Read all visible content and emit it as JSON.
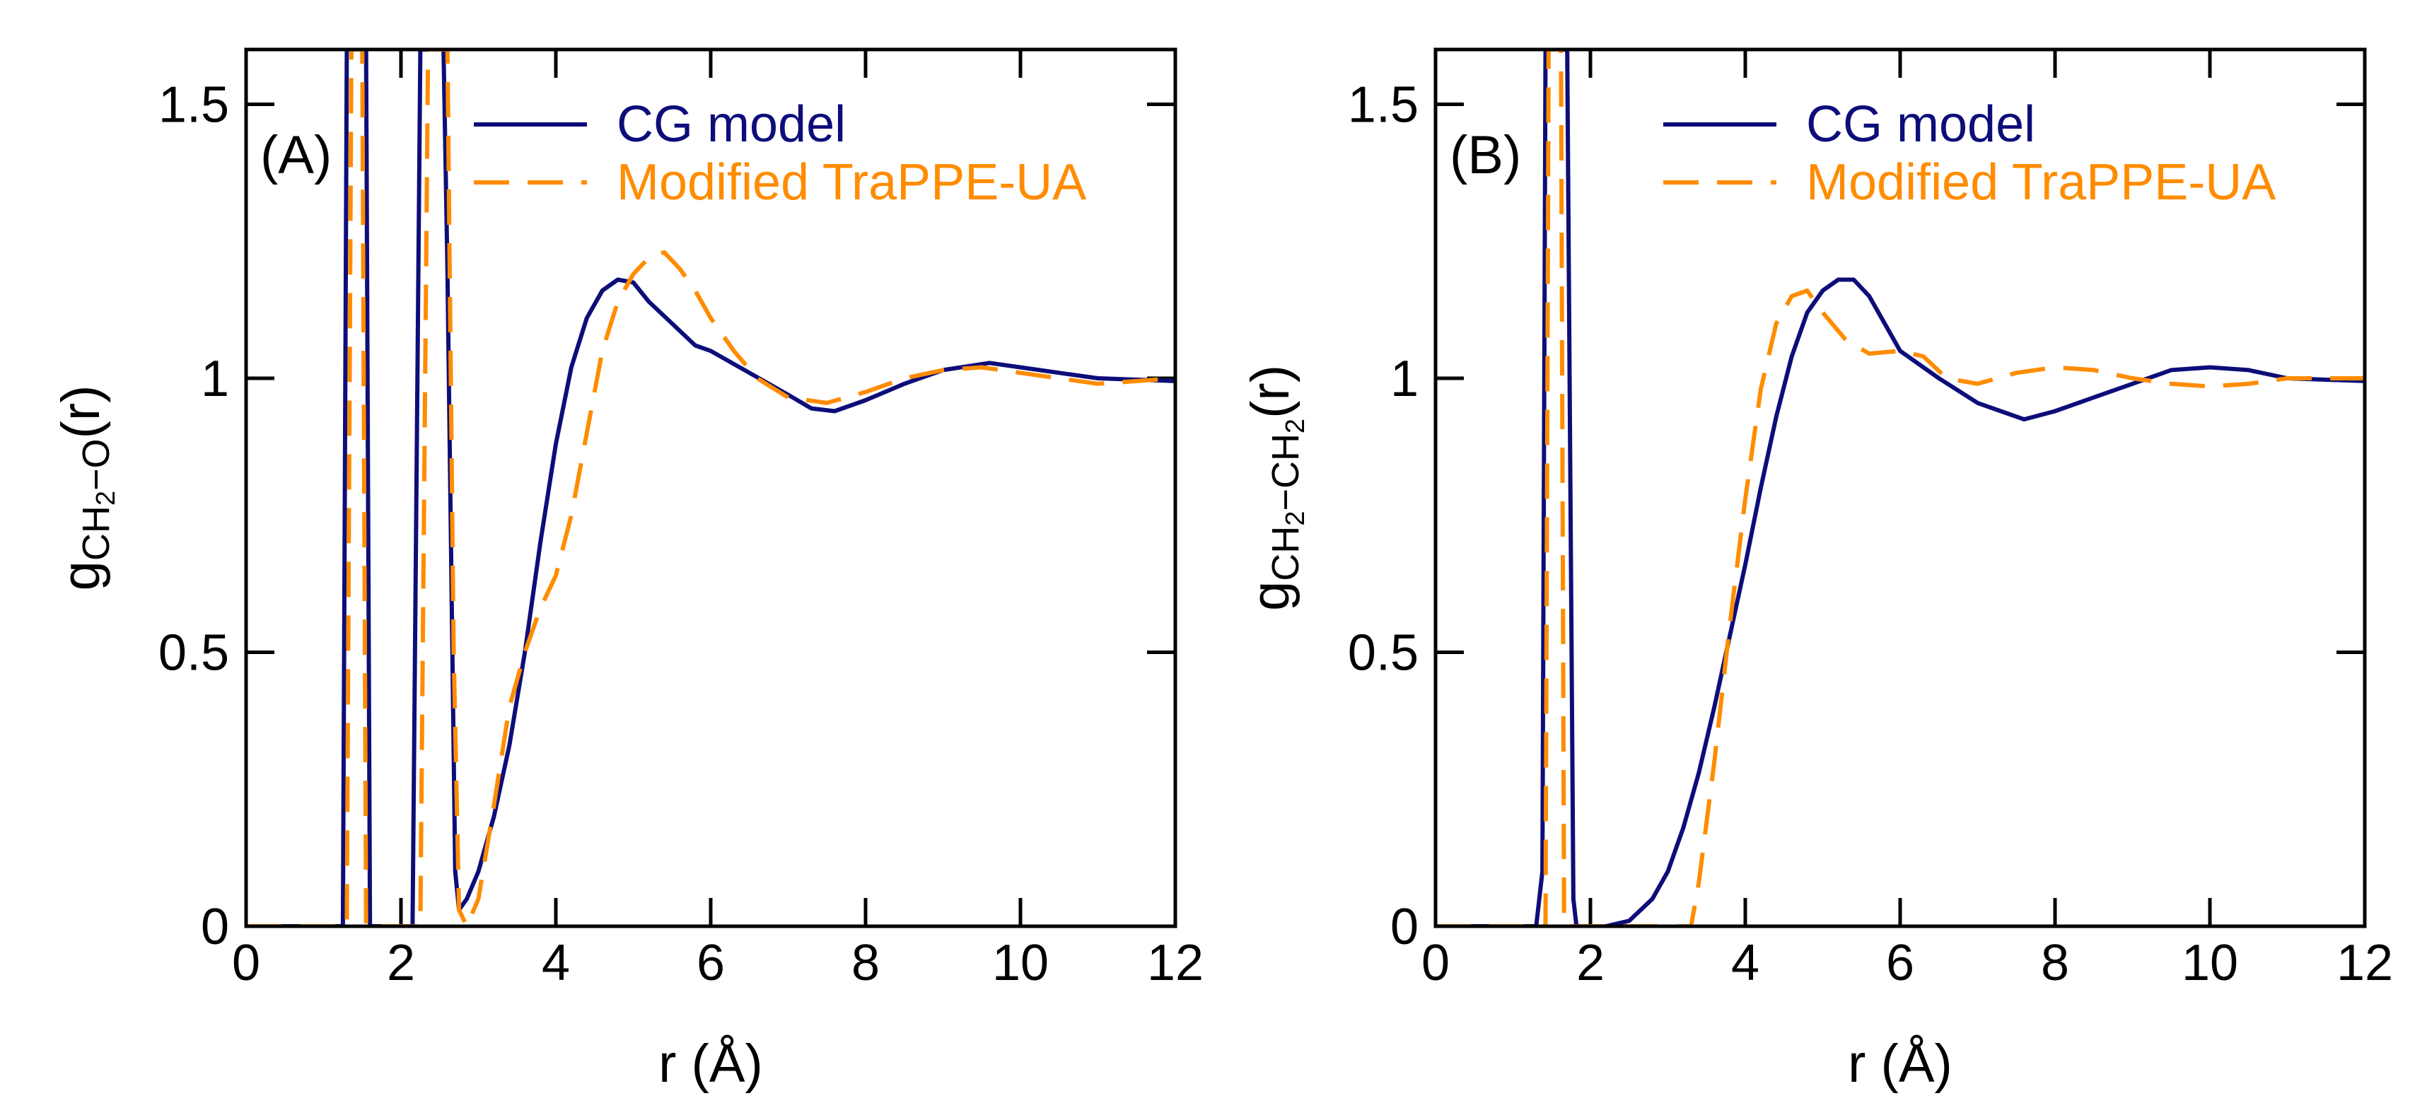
{
  "figure": {
    "title": ""
  },
  "chart_data": [
    {
      "panel_label": "(A)",
      "type": "line",
      "xlabel": "r (Å)",
      "ylabel": {
        "main": "g",
        "sub_a": "CH",
        "sub_b": "2",
        "sub_c": "−O",
        "arg": "(r)"
      },
      "xlim": [
        0,
        12
      ],
      "ylim": [
        0,
        1.6
      ],
      "xticks": [
        0,
        2,
        4,
        6,
        8,
        10,
        12
      ],
      "yticks": [
        0,
        0.5,
        1,
        1.5
      ],
      "xtick_labels": [
        "0",
        "2",
        "4",
        "6",
        "8",
        "10",
        "12"
      ],
      "ytick_labels": [
        "0",
        "0.5",
        "1",
        "1.5"
      ],
      "legend_position": "top-right",
      "series": [
        {
          "name": "CG model",
          "color": "#0d0d7a",
          "style": "solid",
          "points": [
            [
              0,
              0
            ],
            [
              1.25,
              0
            ],
            [
              1.3,
              1.6
            ],
            [
              1.45,
              1.6
            ],
            [
              1.55,
              1.6
            ],
            [
              1.6,
              0
            ],
            [
              2.15,
              0
            ],
            [
              2.25,
              1.6
            ],
            [
              2.45,
              1.6
            ],
            [
              2.55,
              1.6
            ],
            [
              2.6,
              1.2
            ],
            [
              2.7,
              0.1
            ],
            [
              2.75,
              0.03
            ],
            [
              2.85,
              0.05
            ],
            [
              3.0,
              0.1
            ],
            [
              3.2,
              0.2
            ],
            [
              3.4,
              0.33
            ],
            [
              3.6,
              0.5
            ],
            [
              3.8,
              0.7
            ],
            [
              4.0,
              0.88
            ],
            [
              4.2,
              1.02
            ],
            [
              4.4,
              1.11
            ],
            [
              4.6,
              1.16
            ],
            [
              4.8,
              1.18
            ],
            [
              5.0,
              1.175
            ],
            [
              5.2,
              1.14
            ],
            [
              5.5,
              1.1
            ],
            [
              5.8,
              1.06
            ],
            [
              6.0,
              1.05
            ],
            [
              6.5,
              1.01
            ],
            [
              7.0,
              0.97
            ],
            [
              7.3,
              0.945
            ],
            [
              7.6,
              0.94
            ],
            [
              8.0,
              0.96
            ],
            [
              8.5,
              0.99
            ],
            [
              9.0,
              1.015
            ],
            [
              9.6,
              1.028
            ],
            [
              10.0,
              1.02
            ],
            [
              10.5,
              1.01
            ],
            [
              11.0,
              1.0
            ],
            [
              12.0,
              0.995
            ]
          ]
        },
        {
          "name": "Modified TraPPE-UA",
          "color": "#ff8c00",
          "style": "dashed",
          "points": [
            [
              0,
              0
            ],
            [
              1.3,
              0
            ],
            [
              1.36,
              1.6
            ],
            [
              1.5,
              1.6
            ],
            [
              1.55,
              0
            ],
            [
              2.25,
              0
            ],
            [
              2.35,
              1.6
            ],
            [
              2.6,
              1.6
            ],
            [
              2.68,
              0.5
            ],
            [
              2.75,
              0.03
            ],
            [
              2.85,
              0.0
            ],
            [
              3.0,
              0.05
            ],
            [
              3.2,
              0.22
            ],
            [
              3.4,
              0.4
            ],
            [
              3.6,
              0.5
            ],
            [
              3.8,
              0.58
            ],
            [
              4.0,
              0.64
            ],
            [
              4.2,
              0.75
            ],
            [
              4.4,
              0.9
            ],
            [
              4.6,
              1.05
            ],
            [
              4.8,
              1.14
            ],
            [
              5.0,
              1.19
            ],
            [
              5.2,
              1.22
            ],
            [
              5.4,
              1.23
            ],
            [
              5.6,
              1.2
            ],
            [
              5.8,
              1.16
            ],
            [
              6.0,
              1.11
            ],
            [
              6.3,
              1.05
            ],
            [
              6.6,
              1.0
            ],
            [
              7.0,
              0.965
            ],
            [
              7.5,
              0.955
            ],
            [
              8.0,
              0.975
            ],
            [
              8.5,
              1.0
            ],
            [
              9.0,
              1.015
            ],
            [
              9.5,
              1.02
            ],
            [
              10.0,
              1.01
            ],
            [
              10.5,
              1.0
            ],
            [
              11.0,
              0.99
            ],
            [
              12.0,
              1.0
            ]
          ]
        }
      ]
    },
    {
      "panel_label": "(B)",
      "type": "line",
      "xlabel": "r (Å)",
      "ylabel": {
        "main": "g",
        "sub_a": "CH",
        "sub_b": "2",
        "sub_c": "−CH",
        "sub_d": "2",
        "arg": "(r)"
      },
      "xlim": [
        0,
        12
      ],
      "ylim": [
        0,
        1.6
      ],
      "xticks": [
        0,
        2,
        4,
        6,
        8,
        10,
        12
      ],
      "yticks": [
        0,
        0.5,
        1,
        1.5
      ],
      "xtick_labels": [
        "0",
        "2",
        "4",
        "6",
        "8",
        "10",
        "12"
      ],
      "ytick_labels": [
        "0",
        "0.5",
        "1",
        "1.5"
      ],
      "legend_position": "top-right",
      "series": [
        {
          "name": "CG model",
          "color": "#0d0d7a",
          "style": "solid",
          "points": [
            [
              0,
              0
            ],
            [
              1.3,
              0
            ],
            [
              1.38,
              0.1
            ],
            [
              1.42,
              1.6
            ],
            [
              1.6,
              1.6
            ],
            [
              1.7,
              1.6
            ],
            [
              1.78,
              0.05
            ],
            [
              1.82,
              0
            ],
            [
              2.2,
              0
            ],
            [
              2.5,
              0.01
            ],
            [
              2.8,
              0.05
            ],
            [
              3.0,
              0.1
            ],
            [
              3.2,
              0.18
            ],
            [
              3.4,
              0.28
            ],
            [
              3.6,
              0.4
            ],
            [
              3.8,
              0.53
            ],
            [
              4.0,
              0.66
            ],
            [
              4.2,
              0.8
            ],
            [
              4.4,
              0.93
            ],
            [
              4.6,
              1.04
            ],
            [
              4.8,
              1.12
            ],
            [
              5.0,
              1.16
            ],
            [
              5.2,
              1.18
            ],
            [
              5.4,
              1.18
            ],
            [
              5.6,
              1.15
            ],
            [
              5.8,
              1.1
            ],
            [
              6.0,
              1.05
            ],
            [
              6.5,
              1.0
            ],
            [
              7.0,
              0.955
            ],
            [
              7.3,
              0.94
            ],
            [
              7.6,
              0.925
            ],
            [
              8.0,
              0.94
            ],
            [
              8.5,
              0.965
            ],
            [
              9.0,
              0.99
            ],
            [
              9.5,
              1.015
            ],
            [
              10.0,
              1.02
            ],
            [
              10.5,
              1.015
            ],
            [
              11.0,
              1.0
            ],
            [
              12.0,
              0.995
            ]
          ]
        },
        {
          "name": "Modified TraPPE-UA",
          "color": "#ff8c00",
          "style": "dashed",
          "points": [
            [
              0,
              0
            ],
            [
              1.42,
              0
            ],
            [
              1.46,
              1.6
            ],
            [
              1.62,
              1.6
            ],
            [
              1.66,
              0
            ],
            [
              3.3,
              0
            ],
            [
              3.4,
              0.08
            ],
            [
              3.6,
              0.3
            ],
            [
              3.8,
              0.55
            ],
            [
              4.0,
              0.78
            ],
            [
              4.2,
              0.98
            ],
            [
              4.4,
              1.1
            ],
            [
              4.6,
              1.15
            ],
            [
              4.8,
              1.16
            ],
            [
              5.0,
              1.12
            ],
            [
              5.3,
              1.07
            ],
            [
              5.6,
              1.045
            ],
            [
              6.0,
              1.05
            ],
            [
              6.3,
              1.04
            ],
            [
              6.6,
              1.0
            ],
            [
              7.0,
              0.99
            ],
            [
              7.5,
              1.01
            ],
            [
              8.0,
              1.02
            ],
            [
              8.5,
              1.015
            ],
            [
              9.0,
              1.0
            ],
            [
              9.5,
              0.99
            ],
            [
              10.0,
              0.985
            ],
            [
              10.5,
              0.99
            ],
            [
              11.0,
              1.0
            ],
            [
              12.0,
              1.0
            ]
          ]
        }
      ]
    }
  ]
}
